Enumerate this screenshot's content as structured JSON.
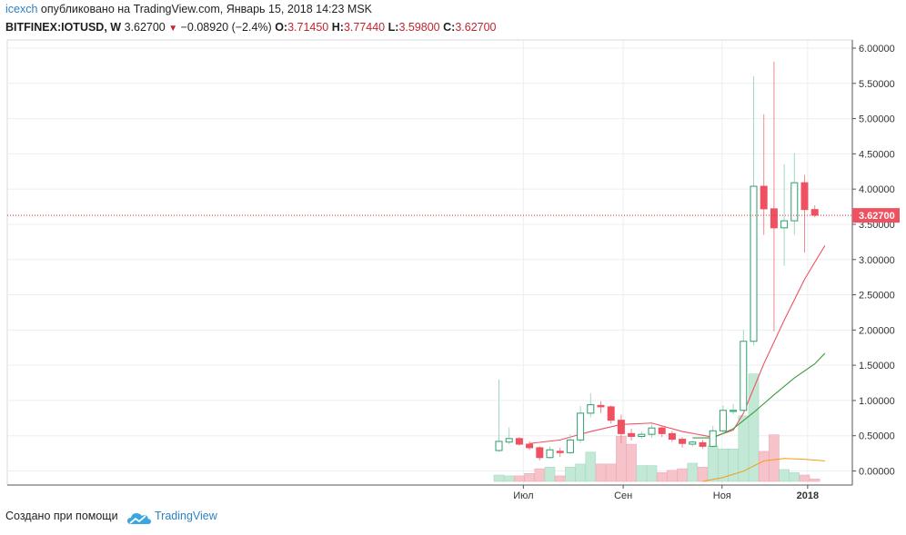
{
  "header": {
    "author": "icexch",
    "published_text": "опубликовано на TradingView.com, Январь 15, 2018 14:23 MSK",
    "symbol": "BITFINEX:IOTUSD, W",
    "last": "3.62700",
    "change": "−0.08920 (−2.4%)",
    "open_label": "O:",
    "open": "3.71450",
    "high_label": "H:",
    "high": "3.77440",
    "low_label": "L:",
    "low": "3.59800",
    "close_label": "C:",
    "close": "3.62700"
  },
  "footer": {
    "created_with": "Создано при помощи",
    "brand": "TradingView",
    "logo_icon": "tradingview-cloud-icon"
  },
  "colors": {
    "up": "#2e9e6b",
    "up_fill": "#ffffff",
    "up_wick": "#9fd9c0",
    "down": "#ef5160",
    "down_wick": "#f08a95",
    "vol_up": "#c3e8d6",
    "vol_down": "#f7c3ca",
    "ma_fast": "#ef5160",
    "ma_slow": "#3d9a3d",
    "vol_ma": "#f39c12",
    "grid": "#ebeef3",
    "price_line": "#e0303a",
    "price_label_bg": "#ef5160"
  },
  "chart_data": {
    "type": "candlestick",
    "interval": "W",
    "ylim": [
      -0.1,
      6.1
    ],
    "y_ticks": [
      "0.00000",
      "0.50000",
      "1.00000",
      "1.50000",
      "2.00000",
      "2.50000",
      "3.00000",
      "3.50000",
      "4.00000",
      "4.50000",
      "5.00000",
      "5.50000",
      "6.00000"
    ],
    "x_tick_labels": [
      "Июл",
      "Сен",
      "Ноя",
      "2018"
    ],
    "x_tick_index": [
      2.4,
      12.2,
      21.9,
      30.3
    ],
    "last_price_label": "3.62700",
    "candles": [
      {
        "o": 0.29,
        "h": 1.3,
        "l": 0.27,
        "c": 0.42,
        "v": 0.08
      },
      {
        "o": 0.41,
        "h": 0.62,
        "l": 0.38,
        "c": 0.46,
        "v": 0.07
      },
      {
        "o": 0.46,
        "h": 0.48,
        "l": 0.36,
        "c": 0.38,
        "v": 0.07
      },
      {
        "o": 0.38,
        "h": 0.42,
        "l": 0.3,
        "c": 0.33,
        "v": 0.1
      },
      {
        "o": 0.33,
        "h": 0.35,
        "l": 0.15,
        "c": 0.19,
        "v": 0.16
      },
      {
        "o": 0.19,
        "h": 0.35,
        "l": 0.17,
        "c": 0.3,
        "v": 0.18
      },
      {
        "o": 0.28,
        "h": 0.33,
        "l": 0.2,
        "c": 0.26,
        "v": 0.07
      },
      {
        "o": 0.26,
        "h": 0.52,
        "l": 0.24,
        "c": 0.44,
        "v": 0.18
      },
      {
        "o": 0.44,
        "h": 0.92,
        "l": 0.4,
        "c": 0.82,
        "v": 0.22
      },
      {
        "o": 0.82,
        "h": 1.1,
        "l": 0.76,
        "c": 0.94,
        "v": 0.37
      },
      {
        "o": 0.93,
        "h": 0.99,
        "l": 0.82,
        "c": 0.91,
        "v": 0.22
      },
      {
        "o": 0.91,
        "h": 0.93,
        "l": 0.67,
        "c": 0.72,
        "v": 0.22
      },
      {
        "o": 0.72,
        "h": 0.8,
        "l": 0.39,
        "c": 0.53,
        "v": 0.57
      },
      {
        "o": 0.53,
        "h": 0.6,
        "l": 0.43,
        "c": 0.49,
        "v": 0.47
      },
      {
        "o": 0.49,
        "h": 0.56,
        "l": 0.46,
        "c": 0.52,
        "v": 0.2
      },
      {
        "o": 0.52,
        "h": 0.66,
        "l": 0.47,
        "c": 0.61,
        "v": 0.2
      },
      {
        "o": 0.61,
        "h": 0.63,
        "l": 0.48,
        "c": 0.53,
        "v": 0.11
      },
      {
        "o": 0.53,
        "h": 0.57,
        "l": 0.41,
        "c": 0.45,
        "v": 0.14
      },
      {
        "o": 0.45,
        "h": 0.48,
        "l": 0.33,
        "c": 0.39,
        "v": 0.16
      },
      {
        "o": 0.38,
        "h": 0.43,
        "l": 0.35,
        "c": 0.41,
        "v": 0.23
      },
      {
        "o": 0.4,
        "h": 0.44,
        "l": 0.32,
        "c": 0.35,
        "v": 0.18
      },
      {
        "o": 0.35,
        "h": 0.64,
        "l": 0.33,
        "c": 0.57,
        "v": 0.45
      },
      {
        "o": 0.57,
        "h": 0.93,
        "l": 0.53,
        "c": 0.86,
        "v": 0.41
      },
      {
        "o": 0.86,
        "h": 0.95,
        "l": 0.8,
        "c": 0.86,
        "v": 0.41
      },
      {
        "o": 0.86,
        "h": 2.0,
        "l": 0.83,
        "c": 1.84,
        "v": 0.83
      },
      {
        "o": 1.84,
        "h": 5.6,
        "l": 1.78,
        "c": 4.04,
        "v": 1.36
      },
      {
        "o": 4.04,
        "h": 5.06,
        "l": 3.35,
        "c": 3.72,
        "v": 0.38
      },
      {
        "o": 3.72,
        "h": 5.81,
        "l": 1.98,
        "c": 3.45,
        "v": 0.59
      },
      {
        "o": 3.45,
        "h": 4.35,
        "l": 2.91,
        "c": 3.55,
        "v": 0.15
      },
      {
        "o": 3.55,
        "h": 4.51,
        "l": 3.35,
        "c": 4.09,
        "v": 0.11
      },
      {
        "o": 4.09,
        "h": 4.2,
        "l": 3.1,
        "c": 3.71,
        "v": 0.08
      },
      {
        "o": 3.71,
        "h": 3.77,
        "l": 3.6,
        "c": 3.63,
        "v": 0.03
      }
    ],
    "ma_fast": [
      [
        3,
        0.39
      ],
      [
        6,
        0.44
      ],
      [
        9,
        0.56
      ],
      [
        12,
        0.66
      ],
      [
        15,
        0.68
      ],
      [
        18,
        0.56
      ],
      [
        21,
        0.48
      ],
      [
        23,
        0.58
      ],
      [
        24,
        0.82
      ],
      [
        26,
        1.52
      ],
      [
        28,
        2.14
      ],
      [
        30,
        2.72
      ],
      [
        32,
        3.2
      ]
    ],
    "ma_slow": [
      [
        19,
        0.47
      ],
      [
        21,
        0.47
      ],
      [
        23,
        0.6
      ],
      [
        25,
        0.83
      ],
      [
        27,
        1.08
      ],
      [
        29,
        1.32
      ],
      [
        31,
        1.52
      ],
      [
        32,
        1.67
      ]
    ],
    "vol_ma": [
      [
        20,
        0.0
      ],
      [
        22,
        0.05
      ],
      [
        24,
        0.13
      ],
      [
        26,
        0.26
      ],
      [
        28,
        0.29
      ],
      [
        30,
        0.28
      ],
      [
        32,
        0.26
      ]
    ]
  }
}
